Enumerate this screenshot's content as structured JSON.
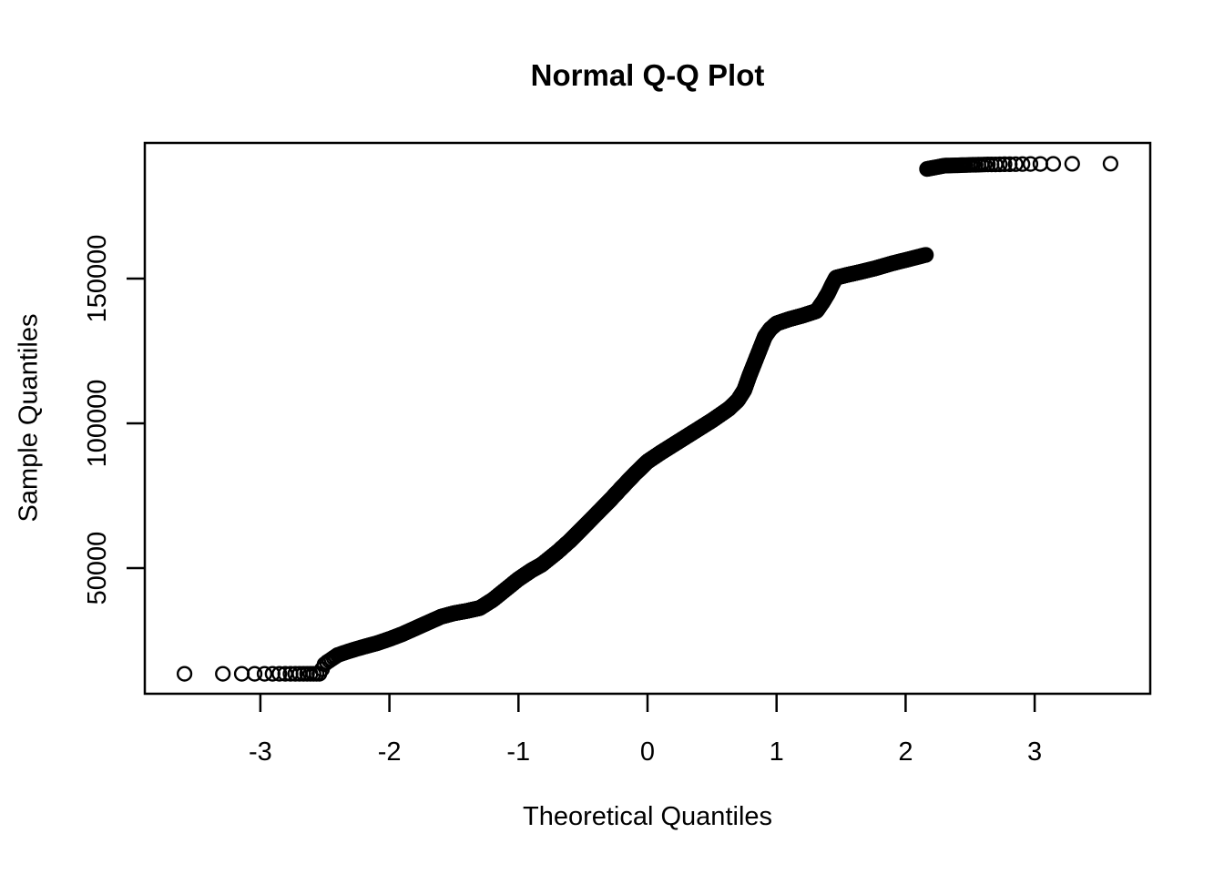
{
  "colors": {
    "foreground": "#000000",
    "background": "#ffffff"
  },
  "chart_data": {
    "type": "scatter",
    "subtype": "normal-qq-plot",
    "title": "Normal Q-Q Plot",
    "xlabel": "Theoretical Quantiles",
    "ylabel": "Sample Quantiles",
    "x_ticks": [
      -3,
      -2,
      -1,
      0,
      1,
      2,
      3
    ],
    "y_ticks": [
      50000,
      100000,
      150000
    ],
    "y_tick_labels": [
      "50000",
      "100000",
      "150000"
    ],
    "xlim": [
      -3.9,
      3.9
    ],
    "ylim": [
      6600,
      196900
    ],
    "grid": false,
    "marker": {
      "shape": "open-circle",
      "color": "#000000"
    },
    "n_points": 3000,
    "sample_min": 13500,
    "sample_max": 189700,
    "quantile_curve": [
      [
        -3.65,
        13500
      ],
      [
        -2.54,
        13500
      ],
      [
        -2.5,
        17000
      ],
      [
        -2.45,
        18500
      ],
      [
        -2.4,
        20000
      ],
      [
        -2.3,
        21500
      ],
      [
        -2.2,
        22800
      ],
      [
        -2.1,
        24000
      ],
      [
        -2.0,
        25500
      ],
      [
        -1.9,
        27200
      ],
      [
        -1.8,
        29200
      ],
      [
        -1.7,
        31200
      ],
      [
        -1.6,
        33200
      ],
      [
        -1.5,
        34400
      ],
      [
        -1.4,
        35200
      ],
      [
        -1.3,
        36200
      ],
      [
        -1.2,
        39000
      ],
      [
        -1.1,
        42600
      ],
      [
        -1.0,
        46200
      ],
      [
        -0.9,
        49200
      ],
      [
        -0.82,
        51200
      ],
      [
        -0.7,
        55500
      ],
      [
        -0.6,
        59500
      ],
      [
        -0.5,
        64000
      ],
      [
        -0.4,
        68500
      ],
      [
        -0.3,
        73000
      ],
      [
        -0.2,
        77800
      ],
      [
        -0.1,
        82500
      ],
      [
        0.0,
        86800
      ],
      [
        0.1,
        89800
      ],
      [
        0.2,
        92600
      ],
      [
        0.3,
        95400
      ],
      [
        0.4,
        98200
      ],
      [
        0.5,
        101000
      ],
      [
        0.63,
        105000
      ],
      [
        0.7,
        108000
      ],
      [
        0.75,
        111500
      ],
      [
        0.79,
        116500
      ],
      [
        0.83,
        121000
      ],
      [
        0.87,
        125500
      ],
      [
        0.91,
        130000
      ],
      [
        0.95,
        132500
      ],
      [
        1.0,
        134500
      ],
      [
        1.1,
        136000
      ],
      [
        1.2,
        137200
      ],
      [
        1.31,
        138800
      ],
      [
        1.36,
        142000
      ],
      [
        1.4,
        145000
      ],
      [
        1.43,
        147800
      ],
      [
        1.46,
        150300
      ],
      [
        1.55,
        151300
      ],
      [
        1.65,
        152300
      ],
      [
        1.76,
        153500
      ],
      [
        1.9,
        155300
      ],
      [
        2.0,
        156400
      ],
      [
        2.13,
        157900
      ],
      [
        2.158,
        158200
      ],
      [
        2.1581,
        187800
      ],
      [
        2.3,
        189000
      ],
      [
        2.6,
        189400
      ],
      [
        3.0,
        189600
      ],
      [
        3.65,
        189700
      ]
    ]
  }
}
